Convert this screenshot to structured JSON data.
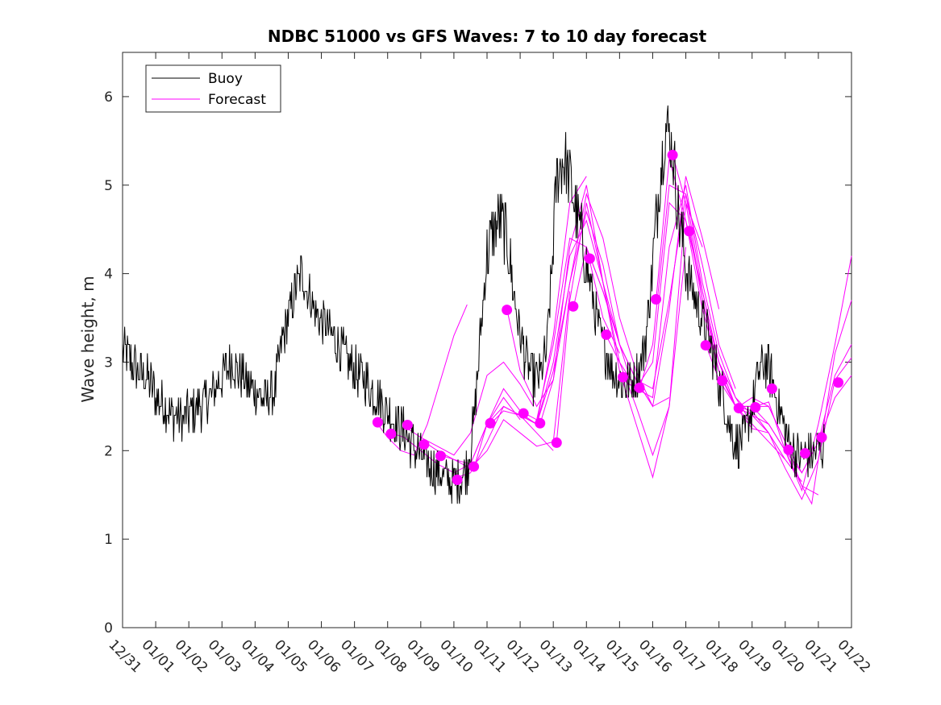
{
  "chart_data": {
    "type": "line",
    "title": "NDBC 51000 vs GFS Waves: 7 to 10 day forecast",
    "xlabel": "",
    "ylabel": "Wave height, m",
    "ylim": [
      0,
      6.5
    ],
    "xlim": [
      0,
      22
    ],
    "y_ticks": [
      0,
      1,
      2,
      3,
      4,
      5,
      6
    ],
    "x_tick_labels": [
      "12/31",
      "01/01",
      "01/02",
      "01/03",
      "01/04",
      "01/05",
      "01/06",
      "01/07",
      "01/08",
      "01/09",
      "01/10",
      "01/11",
      "01/12",
      "01/13",
      "01/14",
      "01/15",
      "01/16",
      "01/17",
      "01/18",
      "01/19",
      "01/20",
      "01/21",
      "01/22"
    ],
    "legend": {
      "position": "top-left",
      "entries": [
        "Buoy",
        "Forecast"
      ]
    },
    "colors": {
      "buoy": "#000000",
      "forecast": "#ff00ff"
    },
    "buoy_control_points": {
      "x": [
        0,
        0.3,
        0.5,
        0.8,
        1.0,
        1.3,
        1.5,
        1.8,
        2.1,
        2.5,
        2.8,
        3.1,
        3.3,
        3.5,
        3.8,
        4.1,
        4.3,
        4.6,
        4.8,
        5.0,
        5.2,
        5.4,
        5.6,
        5.9,
        6.2,
        6.5,
        6.8,
        7.0,
        7.3,
        7.6,
        7.9,
        8.2,
        8.5,
        8.8,
        9.1,
        9.4,
        9.7,
        10.0,
        10.2,
        10.4,
        10.6,
        10.8,
        11.0,
        11.2,
        11.4,
        11.6,
        11.8,
        12.0,
        12.2,
        12.4,
        12.6,
        12.8,
        12.95,
        13.1,
        13.3,
        13.5,
        13.7,
        13.9,
        14.1,
        14.3,
        14.5,
        14.8,
        15.0,
        15.2,
        15.4,
        15.6,
        15.8,
        16.0,
        16.2,
        16.4,
        16.6,
        16.8,
        17.0,
        17.2,
        17.4,
        17.6,
        17.8,
        18.0,
        18.2,
        18.4,
        18.6,
        18.8,
        19.0,
        19.2,
        19.4,
        19.6,
        19.8,
        20.0,
        20.2,
        20.4,
        20.6,
        20.8,
        21.0,
        21.2
      ],
      "y": [
        3.1,
        3.0,
        2.9,
        2.8,
        2.6,
        2.5,
        2.4,
        2.35,
        2.45,
        2.55,
        2.7,
        2.9,
        3.0,
        2.9,
        2.75,
        2.65,
        2.55,
        2.7,
        3.2,
        3.5,
        3.8,
        4.0,
        3.8,
        3.5,
        3.4,
        3.2,
        3.0,
        2.9,
        2.8,
        2.65,
        2.5,
        2.35,
        2.2,
        2.05,
        1.9,
        1.8,
        1.7,
        1.65,
        1.7,
        1.8,
        2.3,
        3.3,
        4.2,
        4.5,
        4.6,
        4.4,
        3.8,
        3.3,
        3.0,
        2.8,
        2.85,
        3.1,
        4.0,
        5.1,
        5.3,
        5.1,
        4.7,
        4.3,
        3.9,
        3.5,
        3.2,
        2.9,
        2.8,
        2.75,
        2.8,
        2.9,
        3.3,
        4.1,
        5.0,
        5.7,
        5.4,
        4.6,
        4.1,
        3.8,
        3.6,
        3.4,
        3.1,
        2.8,
        2.5,
        2.2,
        2.05,
        2.2,
        2.5,
        2.9,
        3.0,
        2.8,
        2.5,
        2.2,
        2.0,
        1.95,
        1.95,
        1.95,
        2.0,
        2.1
      ]
    },
    "forecast_series": [
      {
        "x": [
          7.7,
          8.0,
          8.4,
          8.8,
          9.2,
          9.6,
          10.0,
          10.4
        ],
        "y": [
          2.3,
          2.15,
          2.0,
          1.95,
          2.3,
          2.8,
          3.3,
          3.65
        ]
      },
      {
        "x": [
          8.1,
          8.5,
          9.0,
          9.5,
          10.0,
          10.5,
          11.0,
          11.5,
          12.0
        ],
        "y": [
          2.2,
          2.15,
          2.0,
          1.85,
          1.75,
          1.85,
          2.3,
          2.6,
          2.35
        ]
      },
      {
        "x": [
          8.6,
          9.0,
          9.5,
          10.0,
          10.5,
          11.0,
          11.5,
          12.0,
          12.4
        ],
        "y": [
          2.25,
          2.15,
          2.05,
          1.95,
          2.2,
          2.85,
          3.0,
          2.75,
          2.5
        ]
      },
      {
        "x": [
          9.1,
          9.5,
          10.0,
          10.5,
          11.0,
          11.5,
          12.0,
          12.5,
          13.0
        ],
        "y": [
          2.1,
          2.0,
          1.9,
          1.85,
          2.3,
          2.5,
          2.4,
          2.2,
          2.0
        ]
      },
      {
        "x": [
          9.6,
          10.0,
          10.5,
          11.0,
          11.5,
          12.0,
          12.5,
          13.0,
          13.5
        ],
        "y": [
          1.95,
          1.9,
          1.8,
          2.0,
          2.35,
          2.2,
          2.05,
          2.1,
          3.8
        ]
      },
      {
        "x": [
          10.1,
          10.5,
          11.0,
          11.5,
          12.0,
          12.5,
          13.0,
          13.5,
          14.0
        ],
        "y": [
          1.7,
          1.75,
          2.1,
          2.5,
          2.4,
          2.3,
          3.3,
          4.8,
          5.1
        ]
      },
      {
        "x": [
          10.6,
          11.0,
          11.5,
          12.0,
          12.5,
          13.0,
          13.5,
          14.0,
          14.5,
          15.0
        ],
        "y": [
          1.8,
          2.3,
          2.7,
          2.45,
          2.35,
          3.2,
          4.4,
          4.3,
          3.5,
          3.1
        ]
      },
      {
        "x": [
          11.1,
          11.5,
          12.0,
          12.5,
          13.0,
          13.5,
          14.0,
          14.5,
          15.0,
          15.5
        ],
        "y": [
          2.3,
          2.45,
          2.4,
          2.3,
          3.0,
          4.2,
          4.6,
          3.9,
          3.2,
          2.6
        ]
      },
      {
        "x": [
          11.6,
          12.0,
          12.5,
          13.0,
          13.5,
          14.0,
          14.5,
          15.0,
          15.5,
          16.0
        ],
        "y": [
          3.6,
          2.9,
          2.5,
          2.8,
          3.9,
          4.9,
          4.4,
          3.5,
          2.9,
          2.5
        ]
      },
      {
        "x": [
          12.1,
          12.5,
          13.0,
          13.5,
          14.0,
          14.5,
          15.0,
          15.5,
          16.0,
          16.5
        ],
        "y": [
          2.4,
          2.3,
          2.9,
          3.9,
          4.7,
          4.1,
          3.2,
          2.8,
          2.5,
          2.6
        ]
      },
      {
        "x": [
          12.6,
          13.0,
          13.5,
          14.0,
          14.5,
          15.0,
          15.5,
          16.0,
          16.5,
          17.0
        ],
        "y": [
          2.3,
          2.8,
          4.3,
          5.0,
          3.9,
          3.0,
          2.5,
          1.95,
          2.5,
          4.3
        ]
      },
      {
        "x": [
          13.1,
          13.5,
          14.0,
          14.5,
          15.0,
          15.5,
          16.0,
          16.5,
          17.0,
          17.5
        ],
        "y": [
          2.1,
          3.7,
          4.8,
          3.9,
          2.9,
          2.3,
          1.7,
          2.5,
          4.8,
          4.3
        ]
      },
      {
        "x": [
          13.6,
          14.0,
          14.5,
          15.0,
          15.5,
          16.0,
          16.5,
          17.0,
          17.5,
          18.0
        ],
        "y": [
          3.6,
          4.3,
          3.8,
          3.2,
          2.8,
          2.5,
          3.6,
          5.1,
          4.4,
          3.6
        ]
      },
      {
        "x": [
          14.1,
          14.5,
          15.0,
          15.5,
          16.0,
          16.5,
          17.0,
          17.5,
          18.0,
          18.5
        ],
        "y": [
          4.2,
          3.8,
          3.2,
          2.8,
          2.7,
          3.7,
          4.9,
          4.1,
          3.2,
          2.7
        ]
      },
      {
        "x": [
          14.6,
          15.0,
          15.5,
          16.0,
          16.5,
          17.0,
          17.5,
          18.0,
          18.5,
          19.0
        ],
        "y": [
          3.3,
          3.0,
          2.7,
          2.6,
          4.3,
          5.0,
          3.9,
          3.1,
          2.6,
          2.3
        ]
      },
      {
        "x": [
          15.1,
          15.5,
          16.0,
          16.5,
          17.0,
          17.5,
          18.0,
          18.5,
          19.0,
          19.5
        ],
        "y": [
          2.8,
          2.7,
          3.0,
          4.8,
          4.6,
          3.8,
          3.0,
          2.5,
          2.25,
          2.2
        ]
      },
      {
        "x": [
          15.6,
          16.0,
          16.5,
          17.0,
          17.5,
          18.0,
          18.5,
          19.0,
          19.5,
          20.0
        ],
        "y": [
          2.7,
          3.2,
          5.0,
          4.9,
          3.8,
          3.0,
          2.5,
          2.3,
          2.1,
          1.9
        ]
      },
      {
        "x": [
          16.1,
          16.5,
          17.0,
          17.5,
          18.0,
          18.5,
          19.0,
          19.5,
          20.0,
          20.5
        ],
        "y": [
          3.7,
          5.3,
          4.6,
          3.6,
          2.9,
          2.5,
          2.4,
          2.2,
          1.9,
          1.65
        ]
      },
      {
        "x": [
          16.6,
          17.0,
          17.5,
          18.0,
          18.5,
          19.0,
          19.5,
          20.0,
          20.5,
          21.0
        ],
        "y": [
          5.35,
          4.8,
          3.7,
          3.0,
          2.6,
          2.4,
          2.3,
          2.0,
          1.6,
          1.5
        ]
      },
      {
        "x": [
          17.1,
          17.5,
          18.0,
          18.5,
          19.0,
          19.5,
          20.0,
          20.5,
          21.0,
          21.5,
          22.0
        ],
        "y": [
          4.5,
          3.7,
          2.9,
          2.5,
          2.45,
          2.2,
          1.8,
          1.45,
          1.9,
          3.1,
          3.7
        ]
      },
      {
        "x": [
          17.6,
          18.0,
          18.5,
          19.0,
          19.5,
          20.0,
          20.5,
          21.0,
          21.5,
          22.0
        ],
        "y": [
          3.2,
          2.8,
          2.5,
          2.5,
          2.3,
          2.0,
          1.55,
          2.3,
          3.2,
          4.2
        ]
      },
      {
        "x": [
          18.1,
          18.5,
          19.0,
          19.5,
          20.0,
          20.5,
          21.0,
          21.5,
          22.0
        ],
        "y": [
          2.8,
          2.5,
          2.5,
          2.5,
          2.1,
          1.75,
          2.1,
          2.85,
          3.2
        ]
      },
      {
        "x": [
          18.6,
          19.0,
          19.5,
          20.0,
          20.5,
          20.8,
          21.0,
          21.5,
          22.0
        ],
        "y": [
          2.5,
          2.6,
          2.5,
          2.1,
          1.6,
          1.4,
          1.9,
          2.8,
          3.05
        ]
      },
      {
        "x": [
          19.1,
          19.5,
          20.0,
          20.5,
          21.0,
          21.5,
          22.0
        ],
        "y": [
          2.5,
          2.55,
          2.0,
          1.75,
          2.1,
          2.6,
          2.85
        ]
      }
    ],
    "forecast_points": {
      "x": [
        7.7,
        8.1,
        8.6,
        9.1,
        9.6,
        10.1,
        10.6,
        11.1,
        11.6,
        12.1,
        12.6,
        13.1,
        13.6,
        14.1,
        14.6,
        15.1,
        15.6,
        16.1,
        16.6,
        17.1,
        17.6,
        18.1,
        18.6,
        19.1,
        19.6,
        20.1,
        20.6,
        21.1,
        21.6
      ],
      "y": [
        2.32,
        2.19,
        2.29,
        2.07,
        1.94,
        1.67,
        1.82,
        2.31,
        3.59,
        2.42,
        2.31,
        2.09,
        3.63,
        4.17,
        3.31,
        2.83,
        2.71,
        3.71,
        5.34,
        4.48,
        3.19,
        2.79,
        2.48,
        2.49,
        2.7,
        2.01,
        1.97,
        2.15,
        2.77
      ]
    }
  }
}
